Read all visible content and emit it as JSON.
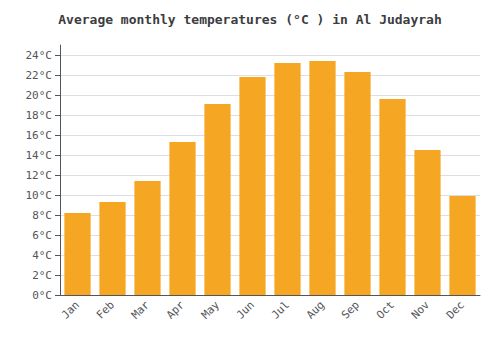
{
  "chart_data": {
    "type": "bar",
    "title": "Average monthly temperatures (°C ) in Al Judayrah",
    "categories": [
      "Jan",
      "Feb",
      "Mar",
      "Apr",
      "May",
      "Jun",
      "Jul",
      "Aug",
      "Sep",
      "Oct",
      "Nov",
      "Dec"
    ],
    "values": [
      8.2,
      9.3,
      11.4,
      15.3,
      19.1,
      21.8,
      23.2,
      23.4,
      22.3,
      19.6,
      14.5,
      9.9
    ],
    "color": "#F5A623",
    "ylim": [
      0,
      25
    ],
    "yticks": [
      {
        "value": 0,
        "label": "0°C"
      },
      {
        "value": 2,
        "label": "2°C"
      },
      {
        "value": 4,
        "label": "4°C"
      },
      {
        "value": 6,
        "label": "6°C"
      },
      {
        "value": 8,
        "label": "8°C"
      },
      {
        "value": 10,
        "label": "10°C"
      },
      {
        "value": 12,
        "label": "12°C"
      },
      {
        "value": 14,
        "label": "14°C"
      },
      {
        "value": 16,
        "label": "16°C"
      },
      {
        "value": 18,
        "label": "18°C"
      },
      {
        "value": 20,
        "label": "20°C"
      },
      {
        "value": 22,
        "label": "22°C"
      },
      {
        "value": 24,
        "label": "24°C"
      }
    ],
    "grid": true
  }
}
